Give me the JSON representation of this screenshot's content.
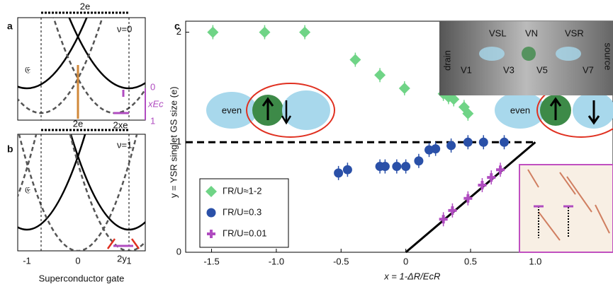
{
  "chart_data": {
    "type": "scatter",
    "xlabel": "x = 1-ΔR/EcR",
    "ylabel": "y = YSR singlet GS size (e)",
    "xlim": [
      -1.7,
      1.6
    ],
    "ylim": [
      0,
      2.1
    ],
    "xticks": [
      -1.5,
      {
        "value": -1,
        "label": "-1.0"
      },
      -0.5,
      0,
      0.5,
      {
        "value": 1,
        "label": "1.0"
      }
    ],
    "yticks": [
      0,
      1,
      2
    ],
    "legend": "lower left",
    "reference_lines": [
      {
        "x": [
          -1.7,
          1
        ],
        "y": [
          1,
          1
        ],
        "style": "dashed"
      },
      {
        "x": [
          0,
          1
        ],
        "y": [
          0,
          1
        ],
        "style": "solid"
      }
    ],
    "series": [
      {
        "name": "ΓR/U≈1-2",
        "color": "#6fd486",
        "marker": "diamond",
        "x": [
          -1.49,
          -1.09,
          -0.78,
          -0.39,
          -0.2,
          -0.01,
          0.29,
          0.33,
          0.37,
          0.45,
          0.48
        ],
        "y": [
          2.0,
          2.0,
          2.0,
          1.75,
          1.61,
          1.49,
          1.44,
          1.41,
          1.39,
          1.32,
          1.26
        ]
      },
      {
        "name": "ΓR/U=0.3",
        "color": "#2a50a8",
        "marker": "circle",
        "x": [
          -0.52,
          -0.45,
          -0.2,
          -0.16,
          -0.07,
          0.0,
          0.1,
          0.18,
          0.23,
          0.35,
          0.48,
          0.6,
          0.76
        ],
        "y": [
          0.72,
          0.75,
          0.78,
          0.78,
          0.78,
          0.78,
          0.83,
          0.93,
          0.94,
          0.97,
          1.0,
          1.0,
          1.0
        ]
      },
      {
        "name": "ΓR/U=0.01",
        "color": "#b04cc0",
        "marker": "plus",
        "x": [
          0.29,
          0.36,
          0.48,
          0.59,
          0.66,
          0.73
        ],
        "y": [
          0.3,
          0.38,
          0.49,
          0.61,
          0.68,
          0.75
        ]
      }
    ]
  },
  "panel_labels": [
    "a",
    "b",
    "c"
  ],
  "schematic": {
    "charge_a": "2e",
    "charge_b": "2e",
    "nu_a": "ν=0",
    "nu_b": "ν=1",
    "energy_a": "𝔈",
    "energy_b": "𝔈",
    "scale_top": "0",
    "scale_bottom": "1",
    "scale_label": "xEc",
    "width_a": "2xe",
    "width_b": "2y",
    "xticks": [
      "-1",
      "0",
      "1"
    ],
    "xlabel": "Superconductor gate"
  },
  "diagram": {
    "left": "even",
    "right": "even"
  },
  "inset": {
    "drain": "drain",
    "source": "source",
    "gates_top": [
      "VSL",
      "VN",
      "VSR"
    ],
    "gates_bottom": [
      "V1",
      "V3",
      "V5",
      "V7"
    ]
  }
}
